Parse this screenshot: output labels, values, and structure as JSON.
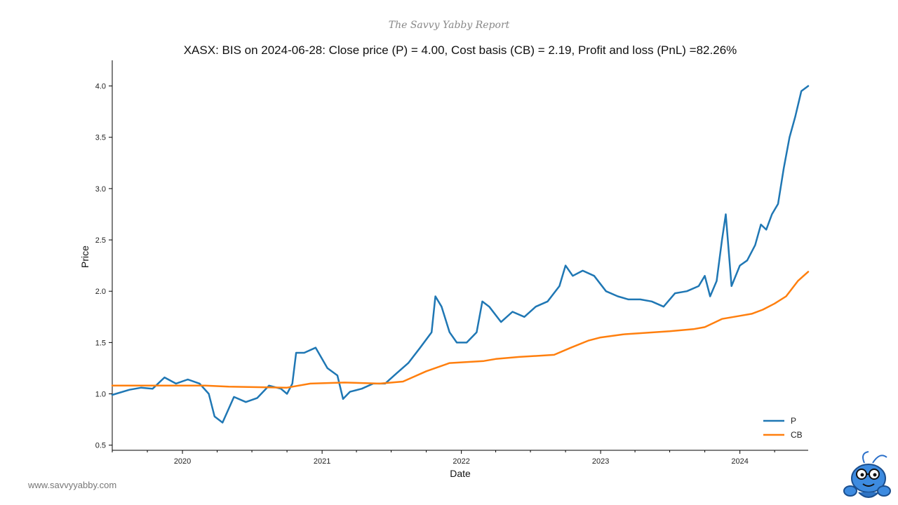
{
  "brand": {
    "report_name": "The Savvy Yabby Report",
    "site": "www.savvyyabby.com"
  },
  "chart_data": {
    "type": "line",
    "title": "XASX: BIS on 2024-06-28: Close price (P) = 4.00, Cost basis (CB) = 2.19, Profit and loss (PnL) =82.26%",
    "xlabel": "Date",
    "ylabel": "Price",
    "xlim": [
      "2019-07-01",
      "2024-06-28"
    ],
    "ylim": [
      0.45,
      4.25
    ],
    "y_ticks": [
      0.5,
      1.0,
      1.5,
      2.0,
      2.5,
      3.0,
      3.5,
      4.0
    ],
    "y_tick_labels": [
      "0.5",
      "1.0",
      "1.5",
      "2.0",
      "2.5",
      "3.0",
      "3.5",
      "4.0"
    ],
    "x_ticks": [
      "2020",
      "2021",
      "2022",
      "2023",
      "2024"
    ],
    "grid": false,
    "legend_position": "bottom-right",
    "colors": {
      "P": "#1f77b4",
      "CB": "#ff7f0e"
    },
    "series": [
      {
        "name": "P",
        "x": [
          "2019-07-01",
          "2019-08-15",
          "2019-09-15",
          "2019-10-15",
          "2019-11-15",
          "2019-12-15",
          "2020-01-15",
          "2020-02-15",
          "2020-03-10",
          "2020-03-25",
          "2020-04-15",
          "2020-05-15",
          "2020-06-15",
          "2020-07-15",
          "2020-08-15",
          "2020-09-15",
          "2020-10-01",
          "2020-10-15",
          "2020-10-25",
          "2020-11-15",
          "2020-12-15",
          "2021-01-15",
          "2021-02-10",
          "2021-02-25",
          "2021-03-15",
          "2021-04-15",
          "2021-05-15",
          "2021-06-15",
          "2021-07-15",
          "2021-08-15",
          "2021-09-15",
          "2021-10-15",
          "2021-10-25",
          "2021-11-10",
          "2021-12-01",
          "2021-12-20",
          "2022-01-15",
          "2022-02-10",
          "2022-02-25",
          "2022-03-15",
          "2022-04-15",
          "2022-05-15",
          "2022-06-15",
          "2022-07-15",
          "2022-08-15",
          "2022-09-15",
          "2022-10-01",
          "2022-10-20",
          "2022-11-15",
          "2022-12-15",
          "2023-01-15",
          "2023-02-15",
          "2023-03-15",
          "2023-04-15",
          "2023-05-15",
          "2023-06-15",
          "2023-07-15",
          "2023-08-15",
          "2023-09-15",
          "2023-10-01",
          "2023-10-15",
          "2023-11-01",
          "2023-11-15",
          "2023-11-25",
          "2023-12-10",
          "2024-01-01",
          "2024-01-20",
          "2024-02-10",
          "2024-02-25",
          "2024-03-10",
          "2024-03-25",
          "2024-04-10",
          "2024-04-25",
          "2024-05-10",
          "2024-05-25",
          "2024-06-10",
          "2024-06-28"
        ],
        "values": [
          0.99,
          1.04,
          1.06,
          1.05,
          1.16,
          1.1,
          1.14,
          1.1,
          1.0,
          0.78,
          0.72,
          0.97,
          0.92,
          0.96,
          1.08,
          1.05,
          1.0,
          1.1,
          1.4,
          1.4,
          1.45,
          1.25,
          1.18,
          0.95,
          1.02,
          1.05,
          1.1,
          1.1,
          1.2,
          1.3,
          1.45,
          1.6,
          1.95,
          1.85,
          1.6,
          1.5,
          1.5,
          1.6,
          1.9,
          1.85,
          1.7,
          1.8,
          1.75,
          1.85,
          1.9,
          2.05,
          2.25,
          2.15,
          2.2,
          2.15,
          2.0,
          1.95,
          1.92,
          1.92,
          1.9,
          1.85,
          1.98,
          2.0,
          2.05,
          2.15,
          1.95,
          2.1,
          2.5,
          2.75,
          2.05,
          2.25,
          2.3,
          2.45,
          2.65,
          2.6,
          2.75,
          2.85,
          3.2,
          3.5,
          3.7,
          3.95,
          4.0
        ]
      },
      {
        "name": "CB",
        "x": [
          "2019-07-01",
          "2020-01-01",
          "2020-03-01",
          "2020-05-01",
          "2020-10-01",
          "2020-12-01",
          "2021-03-01",
          "2021-06-01",
          "2021-08-01",
          "2021-10-01",
          "2021-12-01",
          "2022-03-01",
          "2022-04-01",
          "2022-06-01",
          "2022-09-01",
          "2022-10-15",
          "2022-12-01",
          "2023-01-01",
          "2023-03-01",
          "2023-07-01",
          "2023-09-01",
          "2023-10-01",
          "2023-11-15",
          "2024-01-01",
          "2024-02-01",
          "2024-03-01",
          "2024-04-01",
          "2024-05-01",
          "2024-06-01",
          "2024-06-28"
        ],
        "values": [
          1.08,
          1.08,
          1.08,
          1.07,
          1.06,
          1.1,
          1.11,
          1.1,
          1.12,
          1.22,
          1.3,
          1.32,
          1.34,
          1.36,
          1.38,
          1.45,
          1.52,
          1.55,
          1.58,
          1.61,
          1.63,
          1.65,
          1.73,
          1.76,
          1.78,
          1.82,
          1.88,
          1.95,
          2.1,
          2.19
        ]
      }
    ]
  }
}
